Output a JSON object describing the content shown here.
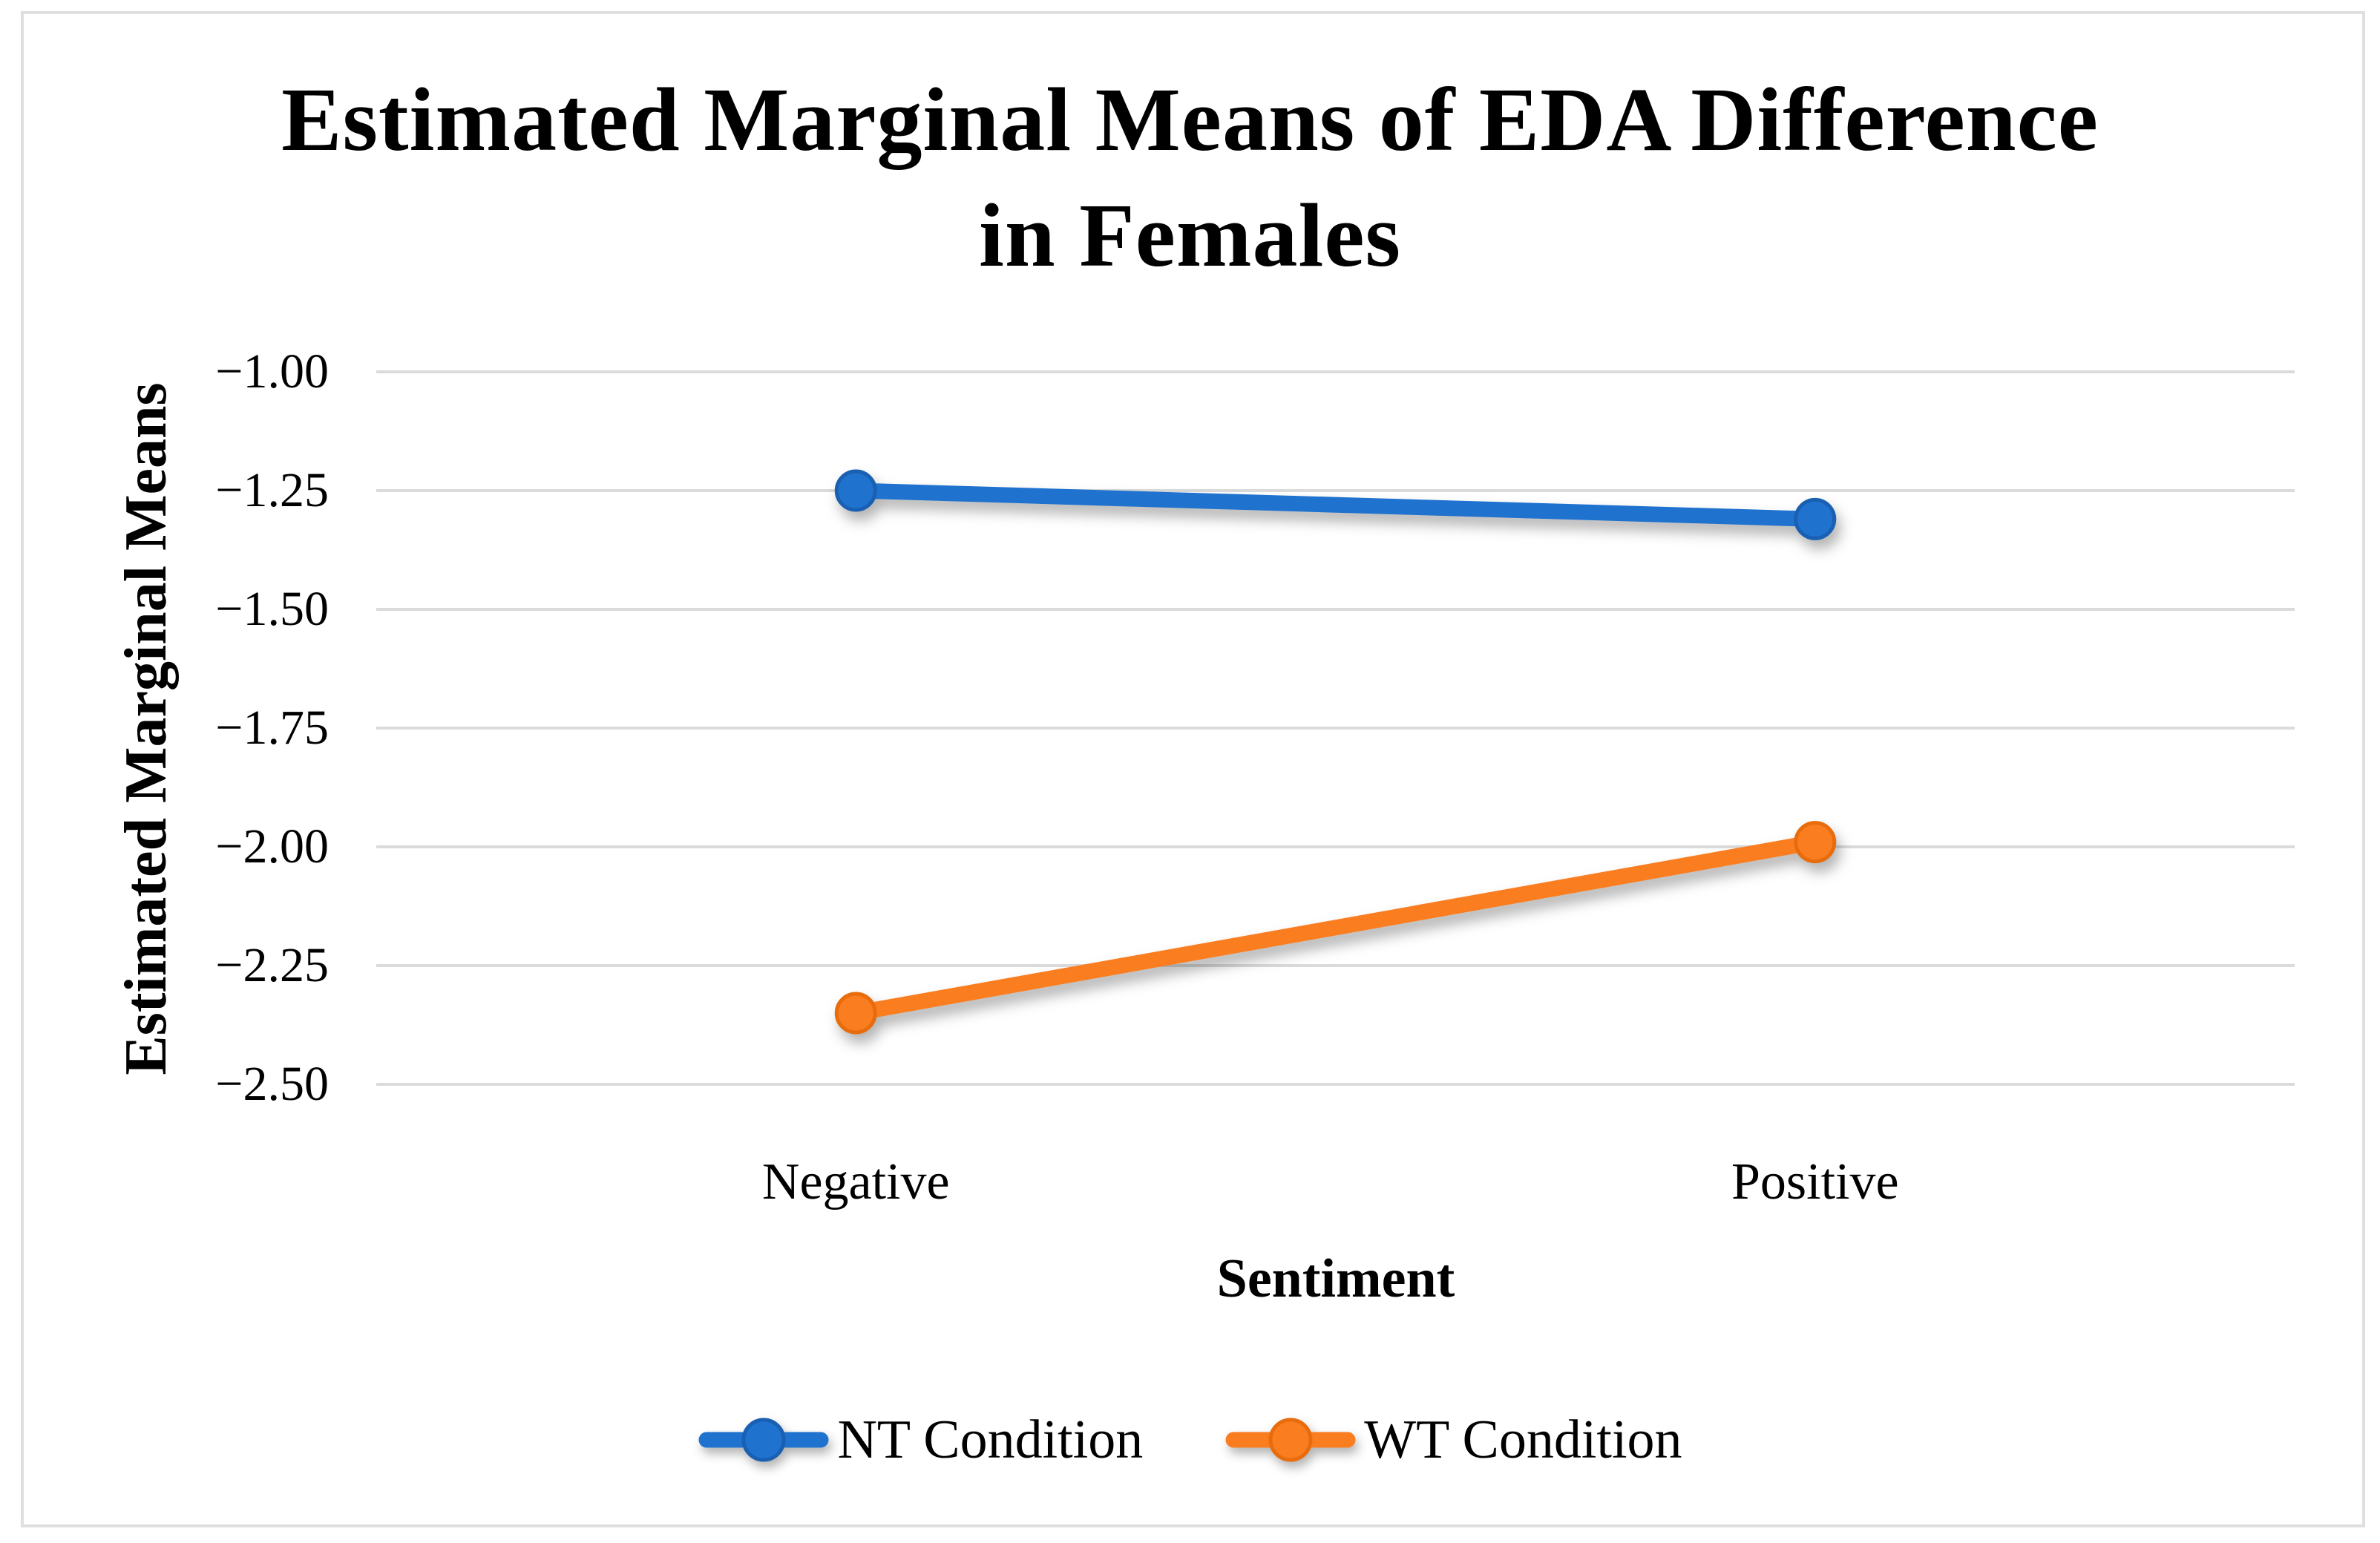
{
  "figure": {
    "background": "#FFFFFF",
    "border_color": "#DFDFDF"
  },
  "chart_data": {
    "type": "line",
    "title": "Estimated Marginal Means of EDA Difference in Females",
    "title_lines": [
      "Estimated Marginal Means of EDA Difference",
      "in Females"
    ],
    "xlabel": "Sentiment",
    "ylabel": "Estimated Marginal Means",
    "categories": [
      "Negative",
      "Positive"
    ],
    "series": [
      {
        "name": "NT Condition",
        "values": [
          -1.25,
          -1.31
        ],
        "color": "#1F72CE",
        "marker_edge": "#1A60B2"
      },
      {
        "name": "WT Condition",
        "values": [
          -2.35,
          -1.99
        ],
        "color": "#FA7D20",
        "marker_edge": "#E86C0C"
      }
    ],
    "ylim": [
      -2.5,
      -1.0
    ],
    "yticks": [
      -1.0,
      -1.25,
      -1.5,
      -1.75,
      -2.0,
      -2.25,
      -2.5
    ],
    "ytick_labels": [
      "−1.00",
      "−1.25",
      "−1.50",
      "−1.75",
      "−2.00",
      "−2.25",
      "−2.50"
    ],
    "grid": "horizontal",
    "gridline_color": "#DBDBDB",
    "legend_position": "bottom"
  }
}
